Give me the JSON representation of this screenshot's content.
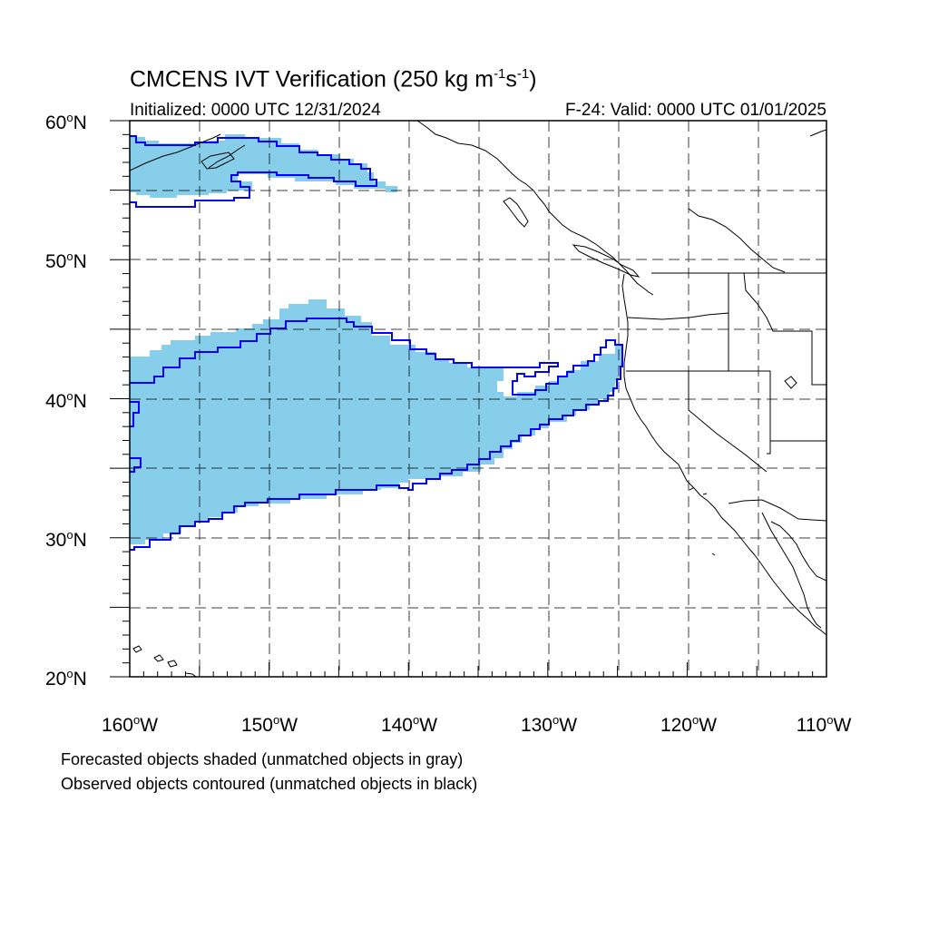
{
  "title": {
    "main": "CMCENS IVT Verification (250 kg m",
    "exp1": "-1",
    "s": "s",
    "exp2": "-1",
    "close": ")"
  },
  "initialized": "Initialized: 0000 UTC 12/31/2024",
  "valid": "F-24: Valid: 0000 UTC 01/01/2025",
  "y_labels": [
    {
      "value": "60",
      "unit": "o",
      "suffix": "N"
    },
    {
      "value": "50",
      "unit": "o",
      "suffix": "N"
    },
    {
      "value": "40",
      "unit": "o",
      "suffix": "N"
    },
    {
      "value": "30",
      "unit": "o",
      "suffix": "N"
    },
    {
      "value": "20",
      "unit": "o",
      "suffix": "N"
    }
  ],
  "x_labels": [
    {
      "value": "160",
      "unit": "o",
      "suffix": "W"
    },
    {
      "value": "150",
      "unit": "o",
      "suffix": "W"
    },
    {
      "value": "140",
      "unit": "o",
      "suffix": "W"
    },
    {
      "value": "130",
      "unit": "o",
      "suffix": "W"
    },
    {
      "value": "120",
      "unit": "o",
      "suffix": "W"
    },
    {
      "value": "110",
      "unit": "o",
      "suffix": "W"
    }
  ],
  "footnotes": [
    "Forecasted objects shaded (unmatched objects in gray)",
    "Observed objects contoured (unmatched objects in black)"
  ],
  "colors": {
    "forecast_fill": "#87CEEB",
    "observed_contour": "#0000FF",
    "coastline": "#000000",
    "grid": "#000000"
  },
  "map_extent": {
    "lon_min": -160,
    "lon_max": -110,
    "lat_min": 20,
    "lat_max": 60
  }
}
